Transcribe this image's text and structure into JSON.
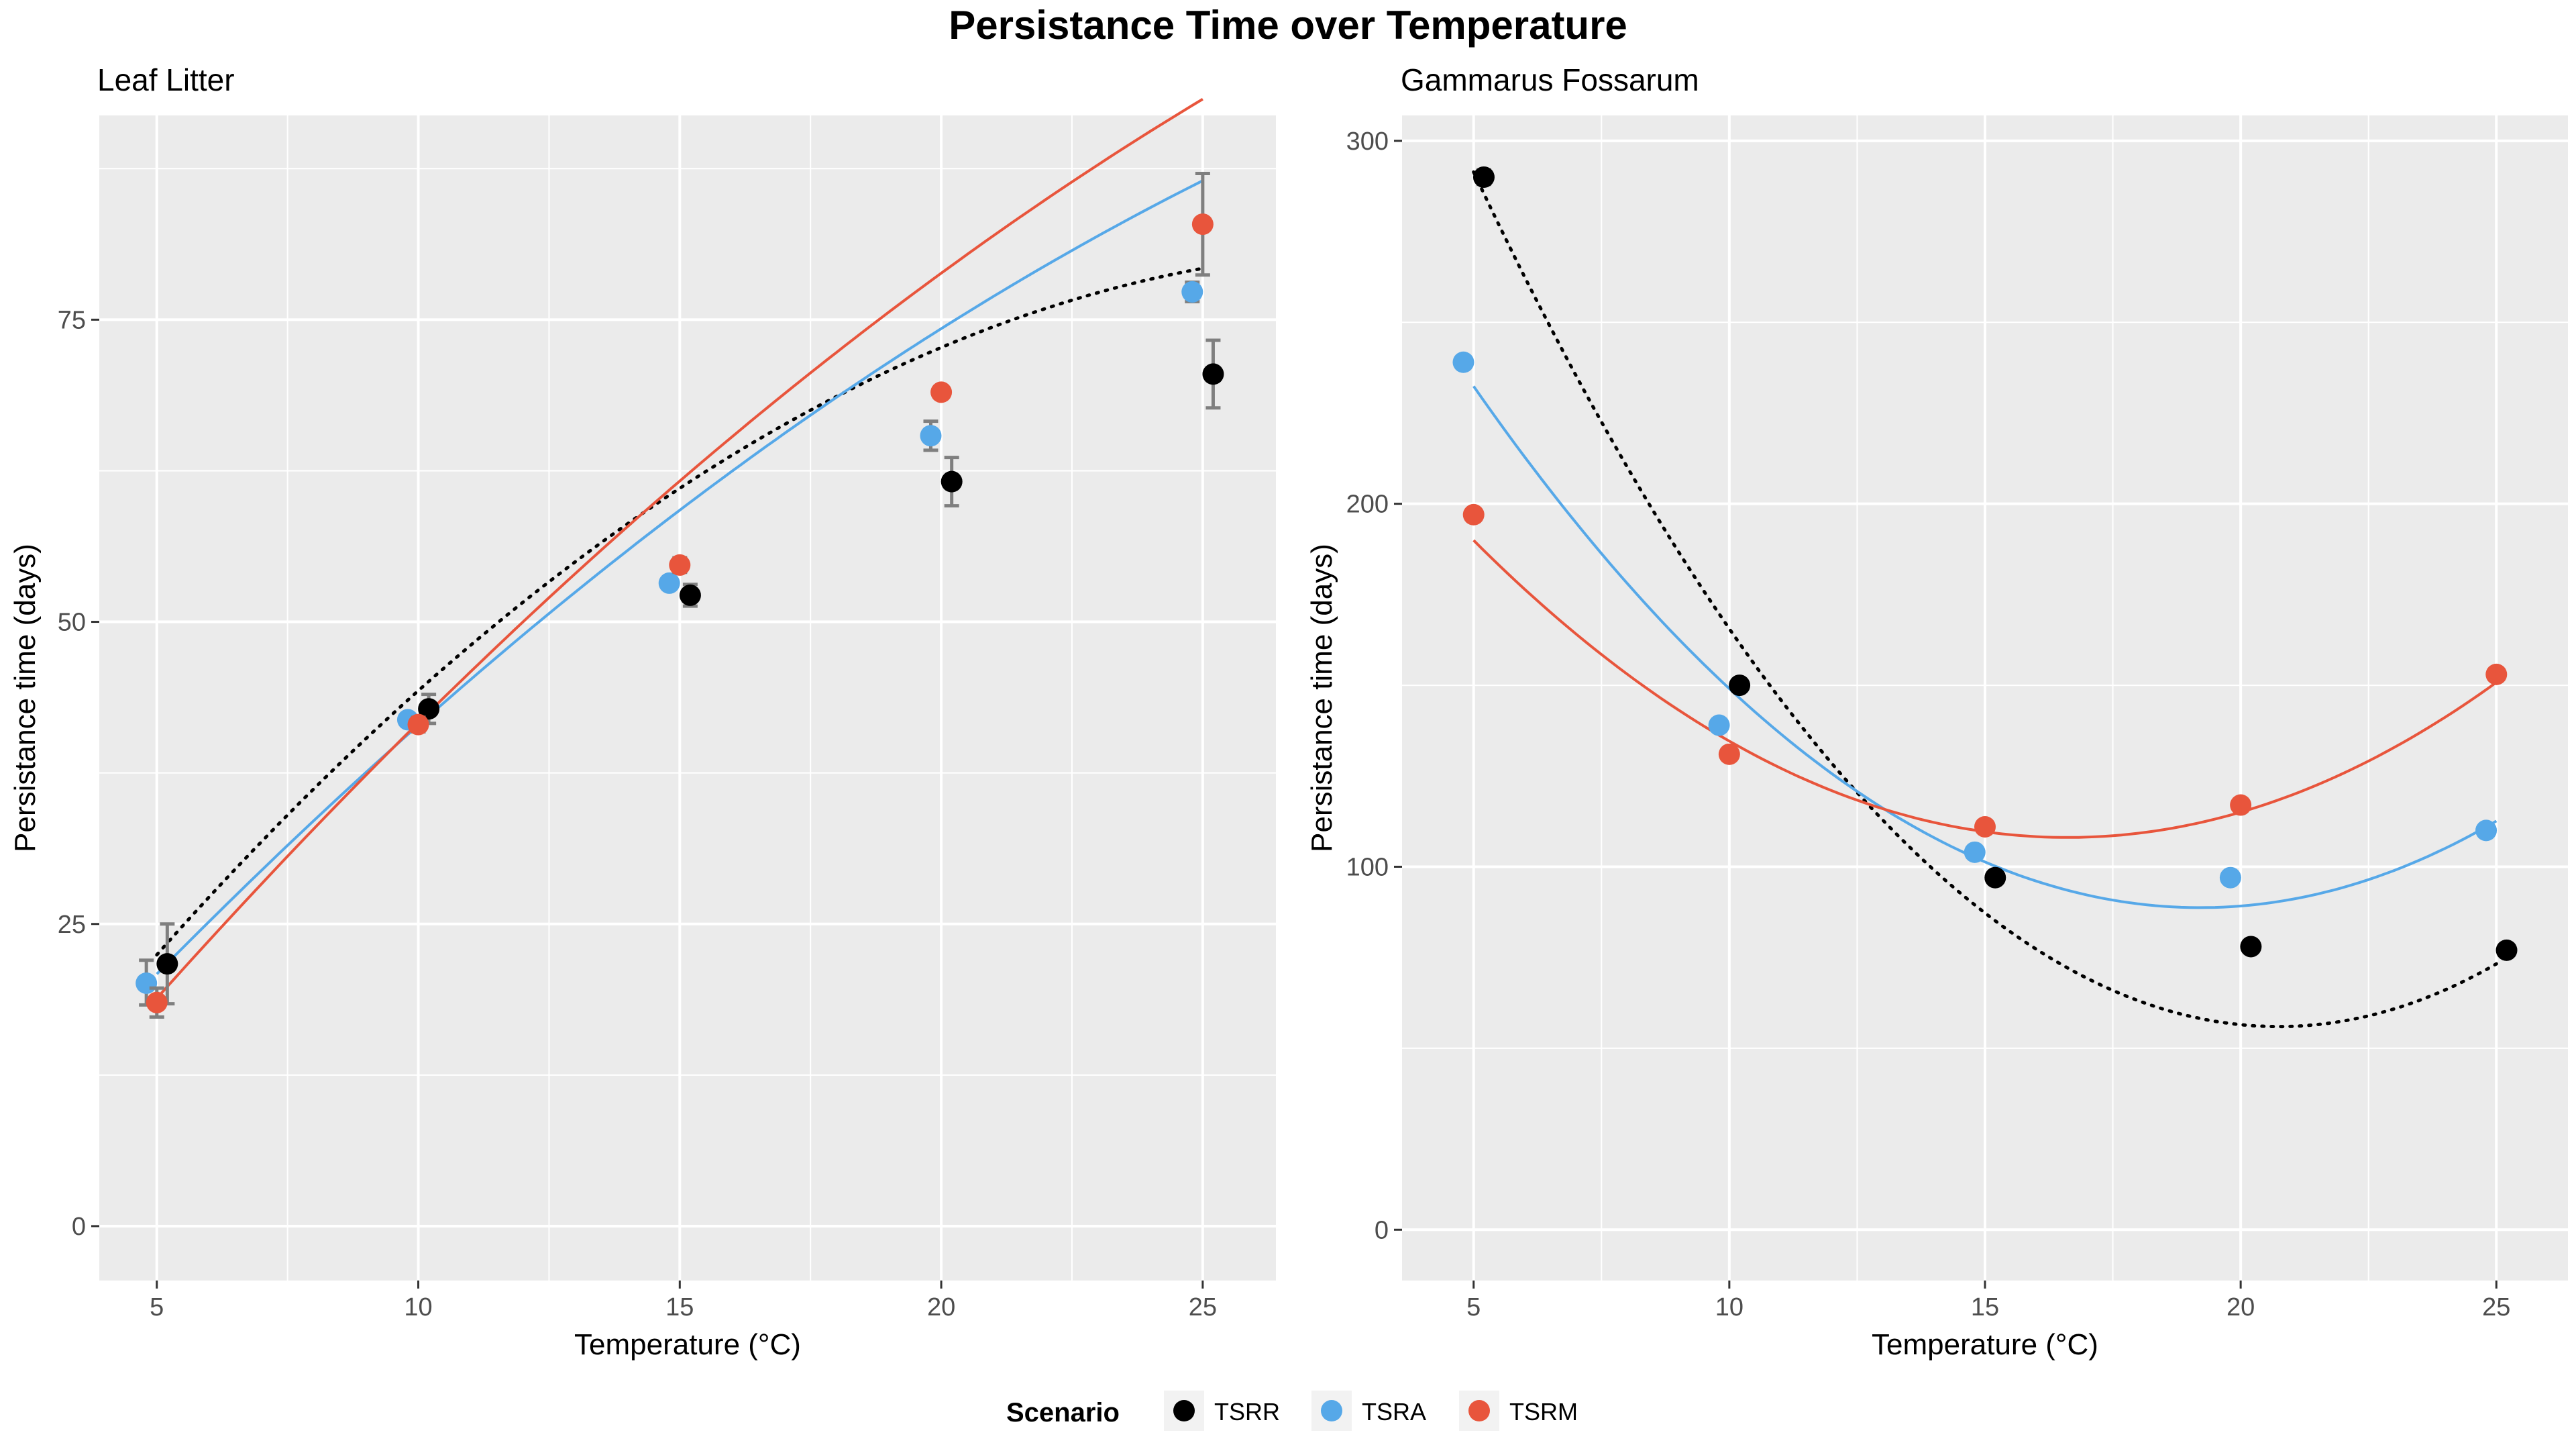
{
  "figure": {
    "title": "Persistance Time over Temperature"
  },
  "legend": {
    "title": "Scenario",
    "placement": "bottom",
    "entries": [
      {
        "name": "TSRR",
        "color": "#000000"
      },
      {
        "name": "TSRA",
        "color": "#56A8E8"
      },
      {
        "name": "TSRM",
        "color": "#E8553C"
      }
    ]
  },
  "chart_data": [
    {
      "type": "scatter",
      "title": "Leaf Litter",
      "xlabel": "Temperature (°C)",
      "ylabel": "Persistance time (days)",
      "xlim": [
        3.9,
        26.4
      ],
      "ylim": [
        -4.5,
        91.9
      ],
      "x_major_ticks": [
        5,
        10,
        15,
        20,
        25
      ],
      "x_minor_ticks": [
        7.5,
        12.5,
        17.5,
        22.5
      ],
      "y_major_ticks": [
        0,
        25,
        50,
        75
      ],
      "y_minor_ticks": [
        12.5,
        37.5,
        62.5,
        87.5
      ],
      "grid": true,
      "series": [
        {
          "name": "TSRR",
          "color": "#000000",
          "dodge": 0.2,
          "points": [
            {
              "x": 5,
              "y": 21.7,
              "lo": 18.4,
              "hi": 25.0
            },
            {
              "x": 10,
              "y": 42.8,
              "lo": 41.6,
              "hi": 44.0
            },
            {
              "x": 15,
              "y": 52.2,
              "lo": 51.3,
              "hi": 53.1
            },
            {
              "x": 20,
              "y": 61.6,
              "lo": 59.6,
              "hi": 63.6
            },
            {
              "x": 25,
              "y": 70.5,
              "lo": 67.7,
              "hi": 73.3
            }
          ],
          "fit": {
            "style": "dotted",
            "coef": [
              -4.5,
              5.9,
              -0.102
            ],
            "x_from": 5,
            "x_to": 25
          }
        },
        {
          "name": "TSRA",
          "color": "#56A8E8",
          "dodge": -0.2,
          "points": [
            {
              "x": 5,
              "y": 20.1,
              "lo": 18.3,
              "hi": 22.0
            },
            {
              "x": 10,
              "y": 41.9,
              "lo": 41.4,
              "hi": 42.4
            },
            {
              "x": 15,
              "y": 53.2,
              "lo": 52.9,
              "hi": 53.5
            },
            {
              "x": 20,
              "y": 65.4,
              "lo": 64.2,
              "hi": 66.6
            },
            {
              "x": 25,
              "y": 77.3,
              "lo": 76.5,
              "hi": 78.1
            }
          ],
          "fit": {
            "style": "solid",
            "coef": [
              -2.5,
              4.95,
              -0.0556
            ],
            "x_from": 5,
            "x_to": 25
          }
        },
        {
          "name": "TSRM",
          "color": "#E8553C",
          "dodge": 0,
          "points": [
            {
              "x": 5,
              "y": 18.5,
              "lo": 17.3,
              "hi": 19.7
            },
            {
              "x": 10,
              "y": 41.5,
              "lo": 40.9,
              "hi": 42.1
            },
            {
              "x": 15,
              "y": 54.7,
              "lo": 54.1,
              "hi": 55.3
            },
            {
              "x": 20,
              "y": 69.0,
              "lo": 68.6,
              "hi": 69.4
            },
            {
              "x": 25,
              "y": 82.9,
              "lo": 78.7,
              "hi": 87.1
            }
          ],
          "fit": {
            "style": "solid",
            "coef": [
              -6.75,
              5.4,
              -0.056
            ],
            "x_from": 5,
            "x_to": 25
          }
        }
      ]
    },
    {
      "type": "scatter",
      "title": "Gammarus Fossarum",
      "xlabel": "Temperature (°C)",
      "ylabel": "Persistance time (days)",
      "xlim": [
        3.6,
        26.4
      ],
      "ylim": [
        -14,
        307
      ],
      "x_major_ticks": [
        5,
        10,
        15,
        20,
        25
      ],
      "x_minor_ticks": [
        7.5,
        12.5,
        17.5,
        22.5
      ],
      "y_major_ticks": [
        0,
        100,
        200,
        300
      ],
      "y_minor_ticks": [
        50,
        150,
        250
      ],
      "grid": true,
      "series": [
        {
          "name": "TSRR",
          "color": "#000000",
          "dodge": 0.2,
          "points": [
            {
              "x": 5,
              "y": 290,
              "lo": 288,
              "hi": 292
            },
            {
              "x": 10,
              "y": 150,
              "lo": 149.5,
              "hi": 150.5
            },
            {
              "x": 15,
              "y": 97,
              "lo": 96.5,
              "hi": 97.5
            },
            {
              "x": 20,
              "y": 78,
              "lo": 77.5,
              "hi": 78.5
            },
            {
              "x": 25,
              "y": 77,
              "lo": 76.5,
              "hi": 77.5
            }
          ],
          "fit": {
            "style": "dotted",
            "coef": [
              464.8,
              -39.43,
              0.9507
            ],
            "x_from": 5,
            "x_to": 25
          }
        },
        {
          "name": "TSRA",
          "color": "#56A8E8",
          "dodge": -0.2,
          "points": [
            {
              "x": 5,
              "y": 239,
              "lo": 237.5,
              "hi": 240.5
            },
            {
              "x": 10,
              "y": 139,
              "lo": 138.5,
              "hi": 139.5
            },
            {
              "x": 15,
              "y": 104,
              "lo": 103.5,
              "hi": 104.5
            },
            {
              "x": 20,
              "y": 97,
              "lo": 96.5,
              "hi": 97.5
            },
            {
              "x": 25,
              "y": 110,
              "lo": 109.5,
              "hi": 110.5
            }
          ],
          "fit": {
            "style": "solid",
            "coef": [
              351.3,
              -27.34,
              0.7117
            ],
            "x_from": 5,
            "x_to": 25
          }
        },
        {
          "name": "TSRM",
          "color": "#E8553C",
          "dodge": 0,
          "points": [
            {
              "x": 5,
              "y": 197,
              "lo": 196,
              "hi": 198
            },
            {
              "x": 10,
              "y": 131,
              "lo": 130.5,
              "hi": 131.5
            },
            {
              "x": 15,
              "y": 111,
              "lo": 110.5,
              "hi": 111.5
            },
            {
              "x": 20,
              "y": 117,
              "lo": 116.5,
              "hi": 117.5
            },
            {
              "x": 25,
              "y": 153,
              "lo": 152.5,
              "hi": 153.5
            }
          ],
          "fit": {
            "style": "solid",
            "coef": [
              275.6,
              -20.17,
              0.6071
            ],
            "x_from": 5,
            "x_to": 25
          }
        }
      ]
    }
  ]
}
